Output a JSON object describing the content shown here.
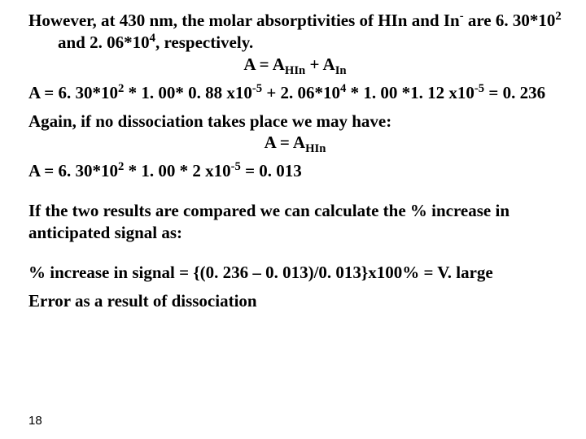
{
  "text": {
    "p1a": "However, at 430 nm, the molar absorptivities of HIn and In",
    "p1sup": "-",
    "p1b": "are 6. 30*10",
    "p1c": " and 2. 06*10",
    "p1d": ", respectively.",
    "eq1_pre": "A = A",
    "eq1_sub1": "HIn",
    "eq1_mid": " + A",
    "eq1_sub2": "In",
    "p2a": "A = 6. 30*10",
    "p2b": " * 1. 00* 0. 88 x10",
    "p2c": " + 2. 06*10",
    "p2d": " * 1. 00 *1. 12 x10",
    "p2e": " = 0. 236",
    "p3": "Again, if no dissociation takes place we may have:",
    "eq2_pre": "A = A",
    "eq2_sub": "HIn",
    "p4a": "A = 6. 30*10",
    "p4b": " * 1. 00 * 2 x10",
    "p4c": " = 0. 013",
    "p5": "If the two results are compared we can calculate the % increase in anticipated signal as:",
    "p6": "% increase in signal = {(0. 236 – 0. 013)/0. 013}x100% = V. large",
    "p7": "Error as a result of dissociation",
    "exp2": "2",
    "exp4": "4",
    "expm5": "-5"
  },
  "pagenum": "18",
  "style": {
    "font_family": "Times New Roman",
    "font_weight": "bold",
    "font_size_pt": 16,
    "text_color": "#000000",
    "background_color": "#ffffff"
  }
}
